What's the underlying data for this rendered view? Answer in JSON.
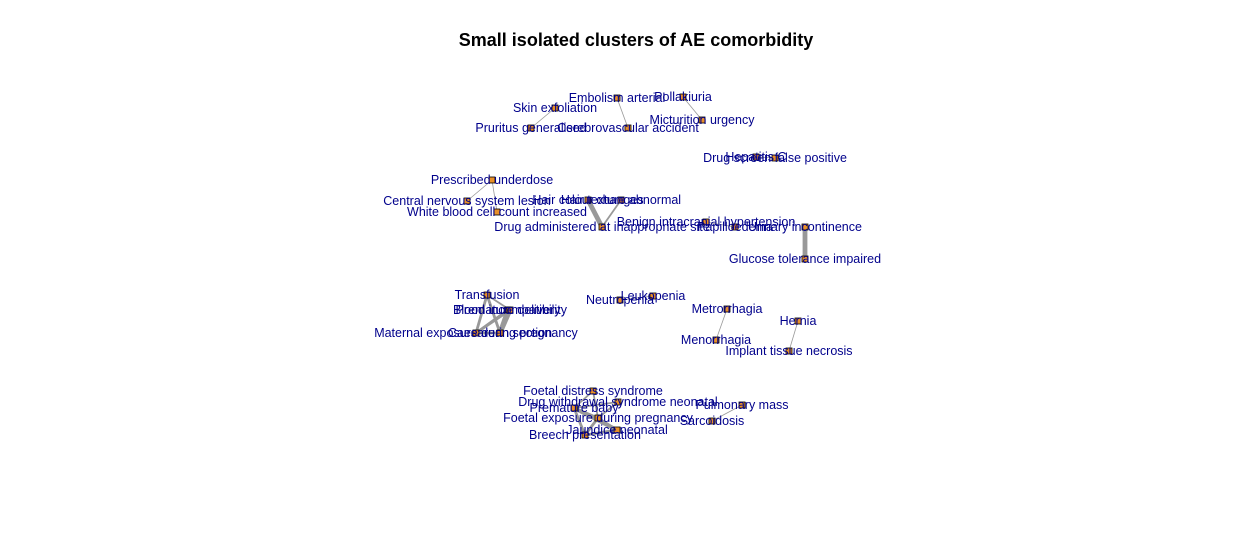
{
  "title": "Small isolated clusters of AE comorbidity",
  "colors": {
    "node_fill": "#e8902a",
    "node_stroke": "#000000",
    "label": "#00008b",
    "edge": "#999999"
  },
  "nodes": [
    {
      "id": "skin_exfoliation",
      "label": "Skin exfoliation"
    },
    {
      "id": "pruritus_generalised",
      "label": "Pruritus generalised"
    },
    {
      "id": "embolism_arterial",
      "label": "Embolism arterial"
    },
    {
      "id": "cerebrovascular_accident",
      "label": "Cerebrovascular accident"
    },
    {
      "id": "pollakiuria",
      "label": "Pollakiuria"
    },
    {
      "id": "micturition_urgency",
      "label": "Micturition urgency"
    },
    {
      "id": "hepatitis_c",
      "label": "Hepatitis C"
    },
    {
      "id": "drug_screen_false_positive",
      "label": "Drug screen false positive"
    },
    {
      "id": "prescribed_underdose",
      "label": "Prescribed underdose"
    },
    {
      "id": "cns_lesion",
      "label": "Central nervous system lesion"
    },
    {
      "id": "wbc_increased",
      "label": "White blood cell count increased"
    },
    {
      "id": "hair_colour_changes",
      "label": "Hair colour changes"
    },
    {
      "id": "hair_texture_abnormal",
      "label": "Hair texture abnormal"
    },
    {
      "id": "drug_admin_site",
      "label": "Drug administered at inappropriate site"
    },
    {
      "id": "benign_ih",
      "label": "Benign intracranial hypertension"
    },
    {
      "id": "papilloedema",
      "label": "Papilloedema"
    },
    {
      "id": "urinary_incontinence",
      "label": "Urinary incontinence"
    },
    {
      "id": "glucose_tolerance",
      "label": "Glucose tolerance impaired"
    },
    {
      "id": "transfusion",
      "label": "Transfusion"
    },
    {
      "id": "premature_delivery",
      "label": "Premature delivery"
    },
    {
      "id": "blood_incompat",
      "label": "Blood incompatibility"
    },
    {
      "id": "maternal_exposure",
      "label": "Maternal exposure during pregnancy"
    },
    {
      "id": "caesarean",
      "label": "Caesarean section"
    },
    {
      "id": "leukopenia",
      "label": "Leukopenia"
    },
    {
      "id": "neutropenia",
      "label": "Neutropenia"
    },
    {
      "id": "metrorrhagia",
      "label": "Metrorrhagia"
    },
    {
      "id": "menorrhagia",
      "label": "Menorrhagia"
    },
    {
      "id": "hernia",
      "label": "Hernia"
    },
    {
      "id": "implant_necrosis",
      "label": "Implant tissue necrosis"
    },
    {
      "id": "foetal_distress",
      "label": "Foetal distress syndrome"
    },
    {
      "id": "drug_withdrawal_neo",
      "label": "Drug withdrawal syndrome neonatal"
    },
    {
      "id": "premature_baby",
      "label": "Premature baby"
    },
    {
      "id": "foetal_exposure",
      "label": "Foetal exposure during pregnancy"
    },
    {
      "id": "jaundice_neonatal",
      "label": "Jaundice neonatal"
    },
    {
      "id": "breech",
      "label": "Breech presentation"
    },
    {
      "id": "pulmonary_mass",
      "label": "Pulmonary mass"
    },
    {
      "id": "sarcoidosis",
      "label": "Sarcoidosis"
    }
  ],
  "edges": [
    {
      "source": "skin_exfoliation",
      "target": "pruritus_generalised",
      "weight": 1
    },
    {
      "source": "embolism_arterial",
      "target": "cerebrovascular_accident",
      "weight": 1
    },
    {
      "source": "pollakiuria",
      "target": "micturition_urgency",
      "weight": 1
    },
    {
      "source": "hepatitis_c",
      "target": "drug_screen_false_positive",
      "weight": 1
    },
    {
      "source": "prescribed_underdose",
      "target": "cns_lesion",
      "weight": 1
    },
    {
      "source": "prescribed_underdose",
      "target": "wbc_increased",
      "weight": 1
    },
    {
      "source": "hair_colour_changes",
      "target": "drug_admin_site",
      "weight": 5
    },
    {
      "source": "hair_texture_abnormal",
      "target": "drug_admin_site",
      "weight": 2
    },
    {
      "source": "hair_colour_changes",
      "target": "hair_texture_abnormal",
      "weight": 1
    },
    {
      "source": "benign_ih",
      "target": "papilloedema",
      "weight": 1
    },
    {
      "source": "urinary_incontinence",
      "target": "glucose_tolerance",
      "weight": 5
    },
    {
      "source": "transfusion",
      "target": "caesarean",
      "weight": 3
    },
    {
      "source": "transfusion",
      "target": "maternal_exposure",
      "weight": 3
    },
    {
      "source": "premature_delivery",
      "target": "caesarean",
      "weight": 5
    },
    {
      "source": "premature_delivery",
      "target": "maternal_exposure",
      "weight": 3
    },
    {
      "source": "blood_incompat",
      "target": "caesarean",
      "weight": 5
    },
    {
      "source": "blood_incompat",
      "target": "maternal_exposure",
      "weight": 3
    },
    {
      "source": "caesarean",
      "target": "maternal_exposure",
      "weight": 3
    },
    {
      "source": "transfusion",
      "target": "blood_incompat",
      "weight": 2
    },
    {
      "source": "leukopenia",
      "target": "neutropenia",
      "weight": 1
    },
    {
      "source": "metrorrhagia",
      "target": "menorrhagia",
      "weight": 1
    },
    {
      "source": "hernia",
      "target": "implant_necrosis",
      "weight": 1
    },
    {
      "source": "foetal_distress",
      "target": "premature_baby",
      "weight": 2
    },
    {
      "source": "foetal_distress",
      "target": "foetal_exposure",
      "weight": 2
    },
    {
      "source": "drug_withdrawal_neo",
      "target": "foetal_exposure",
      "weight": 2
    },
    {
      "source": "drug_withdrawal_neo",
      "target": "premature_baby",
      "weight": 2
    },
    {
      "source": "premature_baby",
      "target": "foetal_exposure",
      "weight": 3
    },
    {
      "source": "premature_baby",
      "target": "jaundice_neonatal",
      "weight": 4
    },
    {
      "source": "foetal_exposure",
      "target": "jaundice_neonatal",
      "weight": 3
    },
    {
      "source": "foetal_exposure",
      "target": "breech",
      "weight": 3
    },
    {
      "source": "breech",
      "target": "jaundice_neonatal",
      "weight": 3
    },
    {
      "source": "premature_baby",
      "target": "breech",
      "weight": 3
    },
    {
      "source": "pulmonary_mass",
      "target": "sarcoidosis",
      "weight": 1
    }
  ]
}
